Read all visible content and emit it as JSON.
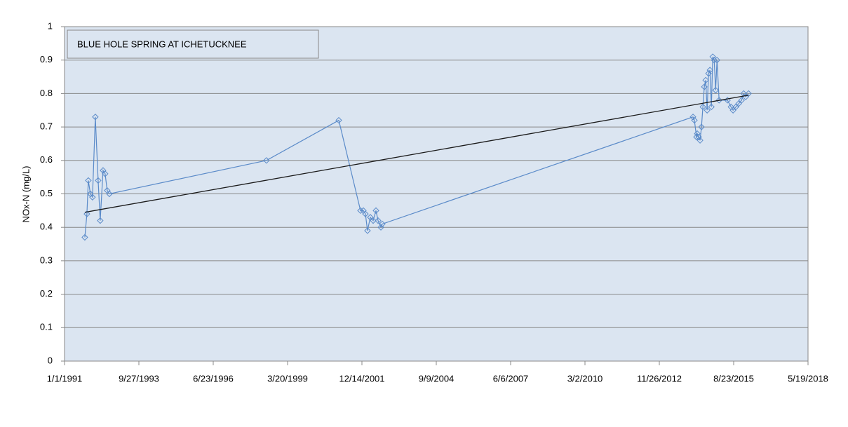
{
  "chart_data": {
    "type": "line",
    "title": "BLUE HOLE SPRING AT ICHETUCKNEE",
    "ylabel": "NOx-N (mg/L)",
    "x": [
      "10/1/1991",
      "10/29/1991",
      "11/17/1991",
      "12/15/1991",
      "1/12/1992",
      "2/19/1992",
      "3/28/1992",
      "4/25/1992",
      "6/2/1992",
      "6/30/1992",
      "7/28/1992",
      "8/26/1992",
      "6/9/1998",
      "2/6/2001",
      "11/25/2001",
      "1/2/2002",
      "1/30/2002",
      "2/27/2002",
      "4/6/2002",
      "5/14/2002",
      "6/21/2002",
      "7/19/2002",
      "8/26/2002",
      "9/14/2002",
      "2/22/2014",
      "3/13/2014",
      "4/10/2014",
      "4/20/2014",
      "5/9/2014",
      "5/28/2014",
      "6/16/2014",
      "7/5/2014",
      "7/24/2014",
      "8/12/2014",
      "8/31/2014",
      "9/19/2014",
      "10/8/2014",
      "10/27/2014",
      "11/15/2014",
      "12/4/2014",
      "12/23/2014",
      "1/11/2015",
      "2/8/2015",
      "6/1/2015",
      "7/18/2015",
      "8/15/2015",
      "9/22/2015",
      "10/30/2015",
      "12/7/2015",
      "1/4/2016",
      "2/1/2016",
      "3/10/2016"
    ],
    "series": [
      {
        "color": "#5b8bc9",
        "values": [
          0.37,
          0.44,
          0.54,
          0.5,
          0.49,
          0.73,
          0.54,
          0.42,
          0.57,
          0.56,
          0.51,
          0.5,
          0.6,
          0.72,
          0.45,
          0.45,
          0.44,
          0.39,
          0.43,
          0.42,
          0.45,
          0.42,
          0.4,
          0.41,
          0.73,
          0.72,
          0.67,
          0.68,
          0.67,
          0.66,
          0.7,
          0.76,
          0.82,
          0.84,
          0.75,
          0.86,
          0.87,
          0.76,
          0.91,
          0.9,
          0.81,
          0.9,
          0.78,
          0.78,
          0.76,
          0.75,
          0.76,
          0.77,
          0.78,
          0.8,
          0.79,
          0.8
        ]
      }
    ],
    "trendline": {
      "color": "#1a1a1a",
      "x": [
        "10/1/1991",
        "3/10/2016"
      ],
      "values": [
        0.445,
        0.795
      ]
    },
    "xlim": [
      "1/1/1991",
      "5/19/2018"
    ],
    "xticks": [
      "1/1/1991",
      "9/27/1993",
      "6/23/1996",
      "3/20/1999",
      "12/14/2001",
      "9/9/2004",
      "6/6/2007",
      "3/2/2010",
      "11/26/2012",
      "8/23/2015",
      "5/19/2018"
    ],
    "ylim": [
      0,
      1
    ],
    "yticks": [
      0,
      0.1,
      0.2,
      0.3,
      0.4,
      0.5,
      0.6,
      0.7,
      0.8,
      0.9,
      1
    ],
    "grid": true
  }
}
